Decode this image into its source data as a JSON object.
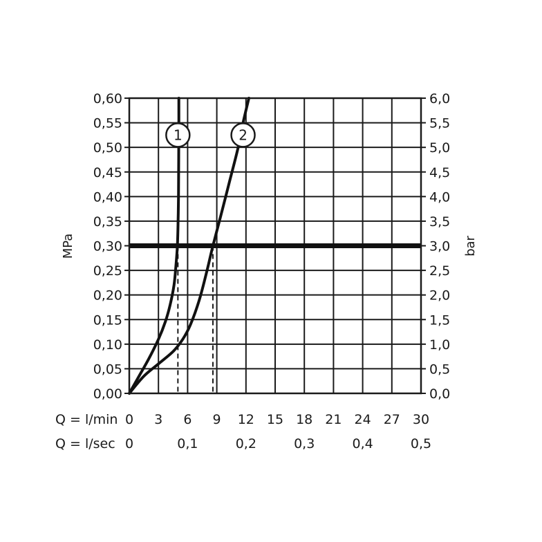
{
  "chart_data": {
    "type": "line",
    "y_left": {
      "label": "MPa",
      "ticks": [
        "0,00",
        "0,05",
        "0,10",
        "0,15",
        "0,20",
        "0,25",
        "0,30",
        "0,35",
        "0,40",
        "0,45",
        "0,50",
        "0,55",
        "0,60"
      ],
      "range": [
        0,
        0.6
      ]
    },
    "y_right": {
      "label": "bar",
      "ticks": [
        "0,0",
        "0,5",
        "1,0",
        "1,5",
        "2,0",
        "2,5",
        "3,0",
        "3,5",
        "4,0",
        "4,5",
        "5,0",
        "5,5",
        "6,0"
      ],
      "range": [
        0,
        6
      ]
    },
    "x": {
      "label": "Q = l/min",
      "ticks": [
        "0",
        "3",
        "6",
        "9",
        "12",
        "15",
        "18",
        "21",
        "24",
        "27",
        "30"
      ],
      "range": [
        0,
        30
      ]
    },
    "x_secondary": {
      "label": "Q = l/sec",
      "ticks": [
        {
          "text": "0",
          "lpm": 0
        },
        {
          "text": "0,1",
          "lpm": 6
        },
        {
          "text": "0,2",
          "lpm": 12
        },
        {
          "text": "0,3",
          "lpm": 18
        },
        {
          "text": "0,4",
          "lpm": 24
        },
        {
          "text": "0,5",
          "lpm": 30
        }
      ]
    },
    "reference_line": {
      "y": 0.3
    },
    "grid": true,
    "series": [
      {
        "label": "1",
        "x": [
          0,
          1,
          2,
          3,
          3.7,
          4.2,
          4.6,
          4.8,
          4.95,
          5.02,
          5.06,
          5.08,
          5.1,
          5.1
        ],
        "y": [
          0,
          0.035,
          0.07,
          0.11,
          0.145,
          0.18,
          0.22,
          0.26,
          0.3,
          0.35,
          0.4,
          0.48,
          0.55,
          0.6
        ],
        "label_at": {
          "x": 5.0,
          "y": 0.525
        },
        "drop_at": {
          "x": 5.0,
          "y": 0.3
        }
      },
      {
        "label": "2",
        "x": [
          0,
          1.5,
          3,
          4.5,
          5.5,
          6.3,
          7.2,
          8.0,
          8.6,
          9.4,
          10.3,
          11.2,
          11.7,
          12.3
        ],
        "y": [
          0,
          0.035,
          0.06,
          0.085,
          0.11,
          0.14,
          0.19,
          0.25,
          0.3,
          0.36,
          0.43,
          0.5,
          0.55,
          0.6
        ],
        "label_at": {
          "x": 11.7,
          "y": 0.525
        },
        "drop_at": {
          "x": 8.6,
          "y": 0.3
        }
      }
    ]
  }
}
